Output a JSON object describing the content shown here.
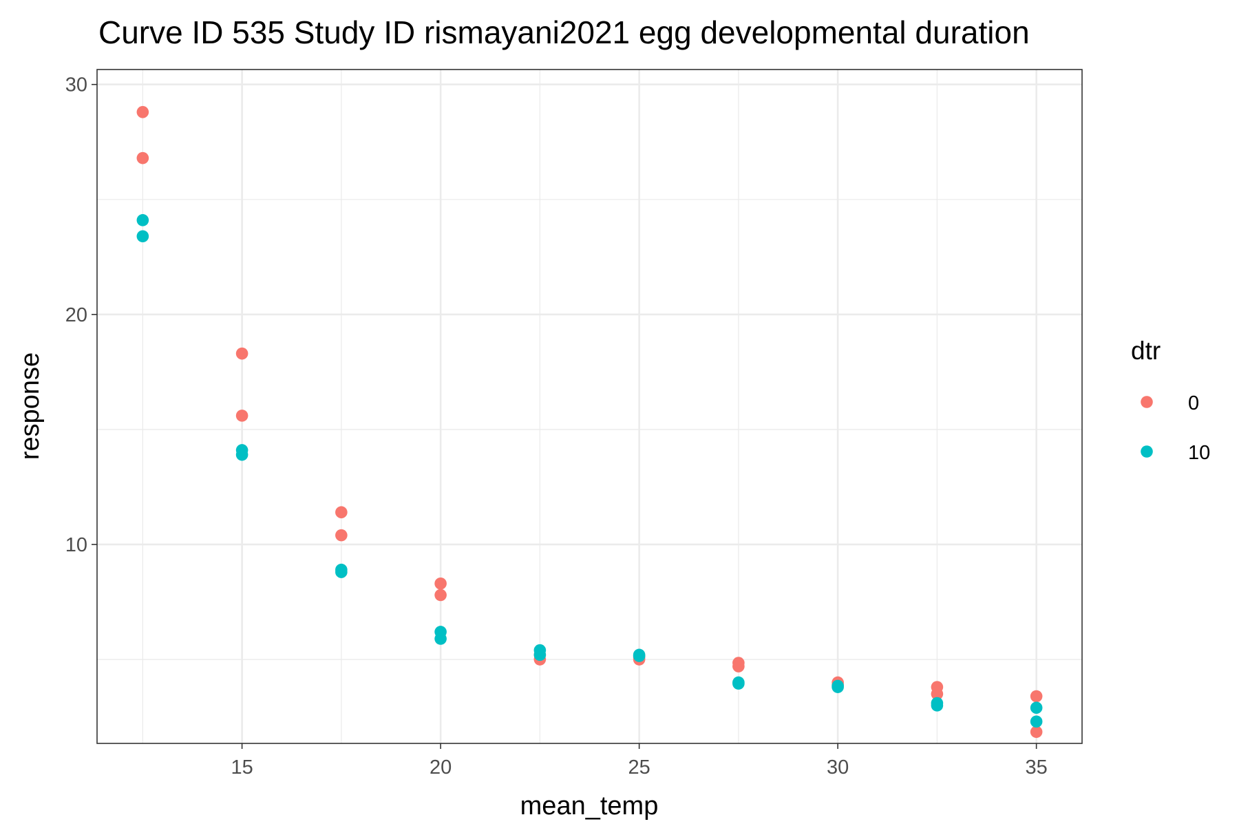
{
  "chart_data": {
    "type": "scatter",
    "title": "Curve ID 535 Study ID rismayani2021 egg developmental duration",
    "xlabel": "mean_temp",
    "ylabel": "response",
    "xlim": [
      11.35,
      36.15
    ],
    "ylim": [
      1.35,
      30.65
    ],
    "x_ticks": [
      15,
      20,
      25,
      30,
      35
    ],
    "y_ticks": [
      10,
      20,
      30
    ],
    "x_minor_ticks": [
      12.5,
      17.5,
      22.5,
      27.5,
      32.5
    ],
    "y_minor_ticks": [
      5,
      15,
      25
    ],
    "grid": true,
    "legend": {
      "title": "dtr",
      "position": "right"
    },
    "series": [
      {
        "name": "0",
        "color": "#F8766D",
        "points": [
          [
            12.5,
            28.8
          ],
          [
            12.5,
            26.8
          ],
          [
            15,
            18.3
          ],
          [
            15,
            15.6
          ],
          [
            17.5,
            11.4
          ],
          [
            17.5,
            10.4
          ],
          [
            20,
            8.3
          ],
          [
            20,
            7.8
          ],
          [
            22.5,
            5.0
          ],
          [
            22.5,
            5.2
          ],
          [
            25,
            5.0
          ],
          [
            25,
            5.1
          ],
          [
            27.5,
            4.7
          ],
          [
            27.5,
            4.85
          ],
          [
            30,
            4.0
          ],
          [
            30,
            3.9
          ],
          [
            32.5,
            3.8
          ],
          [
            32.5,
            3.5
          ],
          [
            35,
            3.4
          ],
          [
            35,
            1.85
          ]
        ]
      },
      {
        "name": "10",
        "color": "#00BFC4",
        "points": [
          [
            12.5,
            24.1
          ],
          [
            12.5,
            23.4
          ],
          [
            15,
            14.1
          ],
          [
            15,
            13.9
          ],
          [
            17.5,
            8.9
          ],
          [
            17.5,
            8.8
          ],
          [
            20,
            6.2
          ],
          [
            20,
            5.9
          ],
          [
            22.5,
            5.4
          ],
          [
            22.5,
            5.2
          ],
          [
            25,
            5.2
          ],
          [
            25,
            5.15
          ],
          [
            27.5,
            3.95
          ],
          [
            27.5,
            4.0
          ],
          [
            30,
            3.8
          ],
          [
            30,
            3.85
          ],
          [
            32.5,
            3.1
          ],
          [
            32.5,
            3.0
          ],
          [
            35,
            2.9
          ],
          [
            35,
            2.3
          ]
        ]
      }
    ]
  }
}
